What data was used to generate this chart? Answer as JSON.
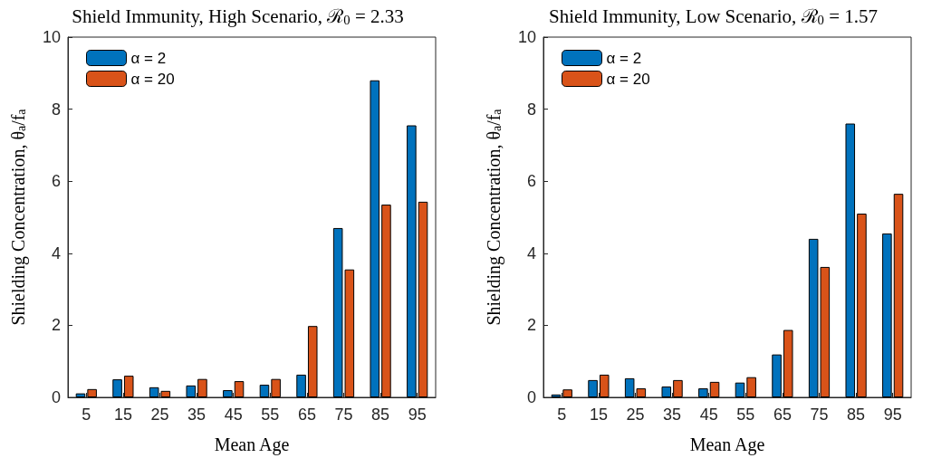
{
  "chart_data": [
    {
      "type": "bar",
      "title": "Shield Immunity, High Scenario, ℛ$_{0}$ = 2.33",
      "xlabel": "Mean Age",
      "ylabel": "Shielding Concentration, θ$_{a}$/f$_{a}$",
      "categories": [
        "5",
        "15",
        "25",
        "35",
        "45",
        "55",
        "65",
        "75",
        "85",
        "95"
      ],
      "ylim": [
        0,
        10
      ],
      "yticks": [
        0,
        2,
        4,
        6,
        8,
        10
      ],
      "legend": "top left",
      "series": [
        {
          "name": "α = 2",
          "color": "#0072bd",
          "values": [
            0.11,
            0.5,
            0.28,
            0.33,
            0.2,
            0.35,
            0.63,
            4.7,
            8.8,
            7.55
          ]
        },
        {
          "name": "α = 20",
          "color": "#d95319",
          "values": [
            0.23,
            0.6,
            0.18,
            0.51,
            0.45,
            0.51,
            1.98,
            3.55,
            5.35,
            5.43
          ]
        }
      ]
    },
    {
      "type": "bar",
      "title": "Shield Immunity, Low Scenario, ℛ$_{0}$ = 1.57",
      "xlabel": "Mean Age",
      "ylabel": "Shielding Concentration, θ$_{a}$/f$_{a}$",
      "categories": [
        "5",
        "15",
        "25",
        "35",
        "45",
        "55",
        "65",
        "75",
        "85",
        "95"
      ],
      "ylim": [
        0,
        10
      ],
      "yticks": [
        0,
        2,
        4,
        6,
        8,
        10
      ],
      "legend": "top left",
      "series": [
        {
          "name": "α = 2",
          "color": "#0072bd",
          "values": [
            0.08,
            0.48,
            0.53,
            0.3,
            0.25,
            0.41,
            1.19,
            4.4,
            7.6,
            4.55
          ]
        },
        {
          "name": "α = 20",
          "color": "#d95319",
          "values": [
            0.22,
            0.63,
            0.25,
            0.48,
            0.43,
            0.56,
            1.87,
            3.62,
            5.1,
            5.65
          ]
        }
      ]
    }
  ]
}
